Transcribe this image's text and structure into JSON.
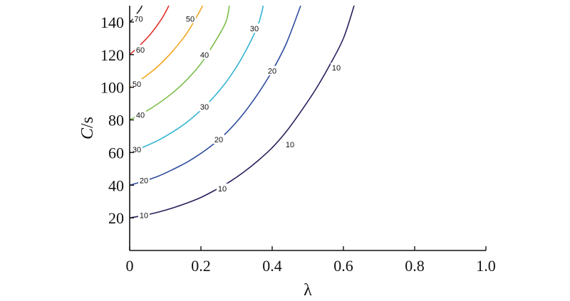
{
  "chart_data": {
    "type": "line",
    "title": "",
    "xlabel": "λ",
    "ylabel": {
      "italic": "C",
      "rest": "/s"
    },
    "xlim": [
      0,
      1.0
    ],
    "ylim": [
      0,
      150
    ],
    "x_ticks": [
      "0",
      "0.2",
      "0.4",
      "0.6",
      "0.8",
      "1.0"
    ],
    "y_ticks": [
      "20",
      "40",
      "60",
      "80",
      "100",
      "120",
      "140"
    ],
    "grid": false,
    "series": [
      {
        "name": "10",
        "color": "#2a1f5c",
        "points": [
          [
            0,
            20
          ],
          [
            0.04,
            21.5
          ],
          [
            0.08,
            23.5
          ],
          [
            0.12,
            26
          ],
          [
            0.16,
            29
          ],
          [
            0.2,
            32.5
          ],
          [
            0.24,
            37
          ],
          [
            0.28,
            42
          ],
          [
            0.32,
            48
          ],
          [
            0.36,
            55
          ],
          [
            0.4,
            63
          ],
          [
            0.44,
            73
          ],
          [
            0.48,
            85
          ],
          [
            0.52,
            98
          ],
          [
            0.56,
            113
          ],
          [
            0.6,
            130
          ],
          [
            0.63,
            150
          ]
        ],
        "labels": [
          {
            "text": "10",
            "x": 0.04,
            "y": 21.5
          },
          {
            "text": "10",
            "x": 0.26,
            "y": 38
          },
          {
            "text": "10",
            "x": 0.45,
            "y": 65
          },
          {
            "text": "10",
            "x": 0.58,
            "y": 112
          }
        ]
      },
      {
        "name": "20",
        "color": "#2f4da0",
        "points": [
          [
            0,
            40
          ],
          [
            0.04,
            42.5
          ],
          [
            0.08,
            45.5
          ],
          [
            0.12,
            49.5
          ],
          [
            0.16,
            54
          ],
          [
            0.2,
            59.5
          ],
          [
            0.24,
            66
          ],
          [
            0.28,
            74
          ],
          [
            0.32,
            84
          ],
          [
            0.36,
            96
          ],
          [
            0.4,
            110
          ],
          [
            0.44,
            127
          ],
          [
            0.48,
            150
          ]
        ],
        "labels": [
          {
            "text": "20",
            "x": 0.04,
            "y": 43
          },
          {
            "text": "20",
            "x": 0.25,
            "y": 68
          },
          {
            "text": "20",
            "x": 0.4,
            "y": 110
          }
        ]
      },
      {
        "name": "30",
        "color": "#33b3d1",
        "points": [
          [
            0,
            60
          ],
          [
            0.04,
            63.5
          ],
          [
            0.08,
            67.5
          ],
          [
            0.12,
            72.5
          ],
          [
            0.16,
            78.5
          ],
          [
            0.2,
            86
          ],
          [
            0.24,
            95
          ],
          [
            0.28,
            106
          ],
          [
            0.32,
            120
          ],
          [
            0.36,
            138
          ],
          [
            0.375,
            150
          ]
        ],
        "labels": [
          {
            "text": "30",
            "x": 0.02,
            "y": 62
          },
          {
            "text": "30",
            "x": 0.21,
            "y": 88
          },
          {
            "text": "30",
            "x": 0.35,
            "y": 136
          }
        ]
      },
      {
        "name": "40",
        "color": "#7cbe4a",
        "points": [
          [
            0,
            80
          ],
          [
            0.04,
            84.5
          ],
          [
            0.08,
            90
          ],
          [
            0.12,
            96.5
          ],
          [
            0.16,
            104.5
          ],
          [
            0.2,
            114.5
          ],
          [
            0.24,
            128
          ],
          [
            0.27,
            140
          ],
          [
            0.28,
            150
          ]
        ],
        "labels": [
          {
            "text": "40",
            "x": 0.03,
            "y": 83
          },
          {
            "text": "40",
            "x": 0.21,
            "y": 120
          }
        ]
      },
      {
        "name": "50",
        "color": "#f2a623",
        "points": [
          [
            0,
            100
          ],
          [
            0.04,
            106
          ],
          [
            0.08,
            113
          ],
          [
            0.12,
            122
          ],
          [
            0.16,
            133
          ],
          [
            0.19,
            144
          ],
          [
            0.205,
            150
          ]
        ],
        "labels": [
          {
            "text": "50",
            "x": 0.02,
            "y": 102
          },
          {
            "text": "50",
            "x": 0.17,
            "y": 142
          }
        ]
      },
      {
        "name": "60",
        "color": "#e0322a",
        "points": [
          [
            0,
            120
          ],
          [
            0.03,
            126
          ],
          [
            0.06,
            133
          ],
          [
            0.09,
            142
          ],
          [
            0.11,
            150
          ]
        ],
        "labels": [
          {
            "text": "60",
            "x": 0.03,
            "y": 123
          }
        ]
      },
      {
        "name": "70",
        "color": "#222222",
        "points": [
          [
            0,
            140
          ],
          [
            0.01,
            142
          ],
          [
            0.02,
            145
          ],
          [
            0.03,
            148
          ],
          [
            0.035,
            150
          ]
        ],
        "labels": [
          {
            "text": "70",
            "x": 0.025,
            "y": 142
          }
        ]
      }
    ]
  }
}
